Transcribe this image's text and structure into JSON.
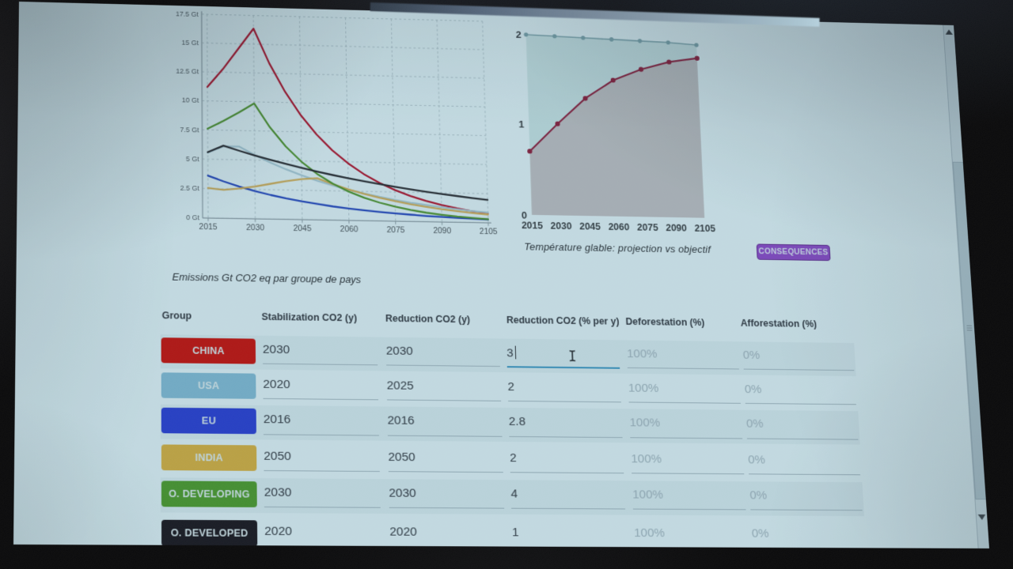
{
  "chart_data": [
    {
      "type": "line",
      "name": "emissions_by_group",
      "title": "Emissions Gt CO2 eq par groupe de pays",
      "xlabel": "",
      "ylabel": "Gt CO2",
      "ylim": [
        0,
        17.5
      ],
      "x_ticks": [
        2015,
        2030,
        2045,
        2060,
        2075,
        2090,
        2105
      ],
      "y_ticks": [
        0,
        2.5,
        5,
        7.5,
        10,
        12.5,
        15,
        17.5
      ],
      "y_tick_labels": [
        "0 Gt",
        "2.5 Gt",
        "5 Gt",
        "7.5 Gt",
        "10 Gt",
        "12.5 Gt",
        "15 Gt",
        "17.5 Gt"
      ],
      "grid": true,
      "x": [
        2015,
        2020,
        2025,
        2030,
        2035,
        2040,
        2045,
        2050,
        2055,
        2060,
        2065,
        2070,
        2075,
        2080,
        2085,
        2090,
        2095,
        2100,
        2105
      ],
      "series": [
        {
          "name": "CHINA",
          "color": "#c41430",
          "values": [
            11.2,
            12.77,
            14.55,
            16.35,
            13.37,
            10.93,
            8.93,
            7.3,
            5.97,
            4.88,
            3.99,
            3.26,
            2.67,
            2.18,
            1.78,
            1.46,
            1.19,
            0.97,
            0.8
          ]
        },
        {
          "name": "USA",
          "color": "#b9d2dc",
          "values": [
            5.55,
            6.13,
            6.13,
            5.43,
            4.81,
            4.26,
            3.77,
            3.34,
            2.96,
            2.62,
            2.32,
            2.05,
            1.82,
            1.61,
            1.43,
            1.26,
            1.12,
            0.99,
            0.88
          ]
        },
        {
          "name": "EU",
          "color": "#2049c4",
          "values": [
            3.6,
            3.13,
            2.72,
            2.36,
            2.05,
            1.78,
            1.55,
            1.35,
            1.17,
            1.02,
            0.88,
            0.77,
            0.67,
            0.58,
            0.5,
            0.44,
            0.38,
            0.33,
            0.29
          ]
        },
        {
          "name": "INDIA",
          "color": "#e8b55e",
          "values": [
            2.55,
            2.42,
            2.55,
            2.75,
            3.0,
            3.25,
            3.45,
            3.55,
            3.07,
            2.65,
            2.29,
            1.98,
            1.71,
            1.48,
            1.28,
            1.1,
            0.95,
            0.82,
            0.71
          ]
        },
        {
          "name": "O. DEVELOPING",
          "color": "#539b33",
          "values": [
            7.6,
            8.29,
            9.04,
            9.86,
            7.83,
            6.22,
            4.94,
            3.92,
            3.11,
            2.47,
            1.96,
            1.56,
            1.24,
            0.98,
            0.78,
            0.62,
            0.49,
            0.39,
            0.31
          ]
        },
        {
          "name": "O. DEVELOPED",
          "color": "#262b32",
          "values": [
            5.6,
            6.18,
            5.78,
            5.4,
            5.05,
            4.72,
            4.41,
            4.12,
            3.85,
            3.6,
            3.37,
            3.15,
            2.94,
            2.75,
            2.57,
            2.4,
            2.25,
            2.1,
            1.96
          ]
        }
      ]
    },
    {
      "type": "line",
      "name": "temperature_projection",
      "title": "Température glable: projection vs objectif",
      "xlabel": "",
      "ylabel": "",
      "ylim": [
        0,
        2
      ],
      "x_ticks": [
        2015,
        2030,
        2045,
        2060,
        2075,
        2090,
        2105
      ],
      "y_ticks": [
        0,
        1,
        2
      ],
      "grid": false,
      "x": [
        2015,
        2030,
        2045,
        2060,
        2075,
        2090,
        2105
      ],
      "series": [
        {
          "name": "objectif",
          "color": "#87acb3",
          "fill": "rgba(108,170,158,0.20)",
          "marker": 2.8,
          "values": [
            2.0,
            1.99,
            1.98,
            1.97,
            1.96,
            1.95,
            1.93
          ]
        },
        {
          "name": "projection",
          "color": "#9b2142",
          "fill": "rgba(182,95,106,0.26)",
          "marker": 3.2,
          "values": [
            0.7,
            1.01,
            1.3,
            1.51,
            1.64,
            1.73,
            1.78
          ]
        }
      ]
    }
  ],
  "right_chart": {
    "caption": "Température glable: projection vs objectif",
    "button_label": "CONSEQUENCES",
    "button_color": "#9b4fd0"
  },
  "table": {
    "focus_underline_color": "#3e9ec9",
    "title": "Emissions Gt CO2 eq par groupe de pays",
    "headers": [
      "Group",
      "Stabilization CO2 (y)",
      "Reduction CO2 (y)",
      "Reduction CO2 (% per y)",
      "Deforestation (%)",
      "Afforestation (%)"
    ],
    "rows": [
      {
        "group": "CHINA",
        "color": "#e01512",
        "stabilization": "2030",
        "reduction_y": "2030",
        "reduction_pct": "3",
        "deforestation": "100%",
        "afforestation": "0%",
        "focused": true
      },
      {
        "group": "USA",
        "color": "#8fc4dc",
        "stabilization": "2020",
        "reduction_y": "2025",
        "reduction_pct": "2",
        "deforestation": "100%",
        "afforestation": "0%",
        "focused": false
      },
      {
        "group": "EU",
        "color": "#2a44db",
        "stabilization": "2016",
        "reduction_y": "2016",
        "reduction_pct": "2.8",
        "deforestation": "100%",
        "afforestation": "0%",
        "focused": false
      },
      {
        "group": "INDIA",
        "color": "#f0b848",
        "stabilization": "2050",
        "reduction_y": "2050",
        "reduction_pct": "2",
        "deforestation": "100%",
        "afforestation": "0%",
        "focused": false
      },
      {
        "group": "O. DEVELOPING",
        "color": "#52a332",
        "stabilization": "2030",
        "reduction_y": "2030",
        "reduction_pct": "4",
        "deforestation": "100%",
        "afforestation": "0%",
        "focused": false
      },
      {
        "group": "O. DEVELOPED",
        "color": "#191923",
        "stabilization": "2020",
        "reduction_y": "2020",
        "reduction_pct": "1",
        "deforestation": "100%",
        "afforestation": "0%",
        "focused": false
      }
    ]
  },
  "cursor": {
    "type": "i-beam",
    "color": "#1f262c"
  },
  "scrollbar": {
    "up_icon": "scroll-up-arrow",
    "down_icon": "scroll-down-arrow"
  }
}
